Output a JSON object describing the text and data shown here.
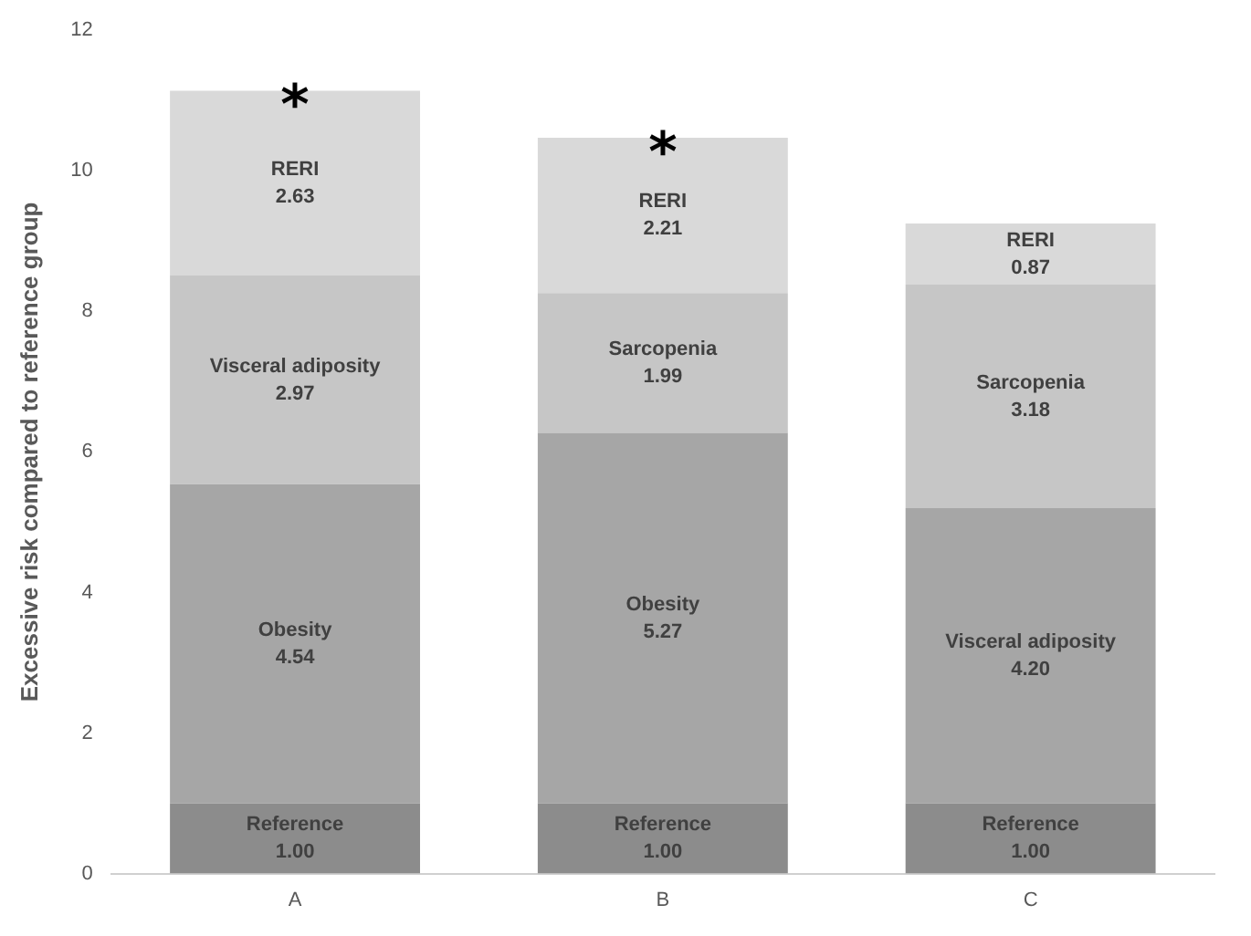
{
  "chart_data": {
    "type": "bar",
    "stacked": true,
    "ylabel": "Excessive risk compared to reference group",
    "categories": [
      "A",
      "B",
      "C"
    ],
    "series": [
      {
        "color": "#8c8c8c",
        "values": [
          1.0,
          1.0,
          1.0
        ],
        "value_labels": [
          "Reference\n1.00",
          "Reference\n1.00",
          "Reference\n1.00"
        ]
      },
      {
        "color": "#a6a6a6",
        "values": [
          4.54,
          5.27,
          4.2
        ],
        "value_labels": [
          "Obesity\n4.54",
          "Obesity\n5.27",
          "Visceral adiposity\n4.20"
        ]
      },
      {
        "color": "#c6c6c6",
        "values": [
          2.97,
          1.99,
          3.18
        ],
        "value_labels": [
          "Visceral adiposity\n2.97",
          "Sarcopenia\n1.99",
          "Sarcopenia\n3.18"
        ]
      },
      {
        "color": "#d9d9d9",
        "values": [
          2.63,
          2.21,
          0.87
        ],
        "value_labels": [
          "RERI\n2.63",
          "RERI\n2.21",
          "RERI\n0.87"
        ]
      }
    ],
    "ylim": [
      0,
      12
    ],
    "yticks": [
      0,
      2,
      4,
      6,
      8,
      10,
      12
    ],
    "grid": false,
    "legend": false,
    "annotations": [
      {
        "text": "*",
        "x": "A",
        "y": 11.14
      },
      {
        "text": "*",
        "x": "B",
        "y": 10.47
      }
    ]
  }
}
